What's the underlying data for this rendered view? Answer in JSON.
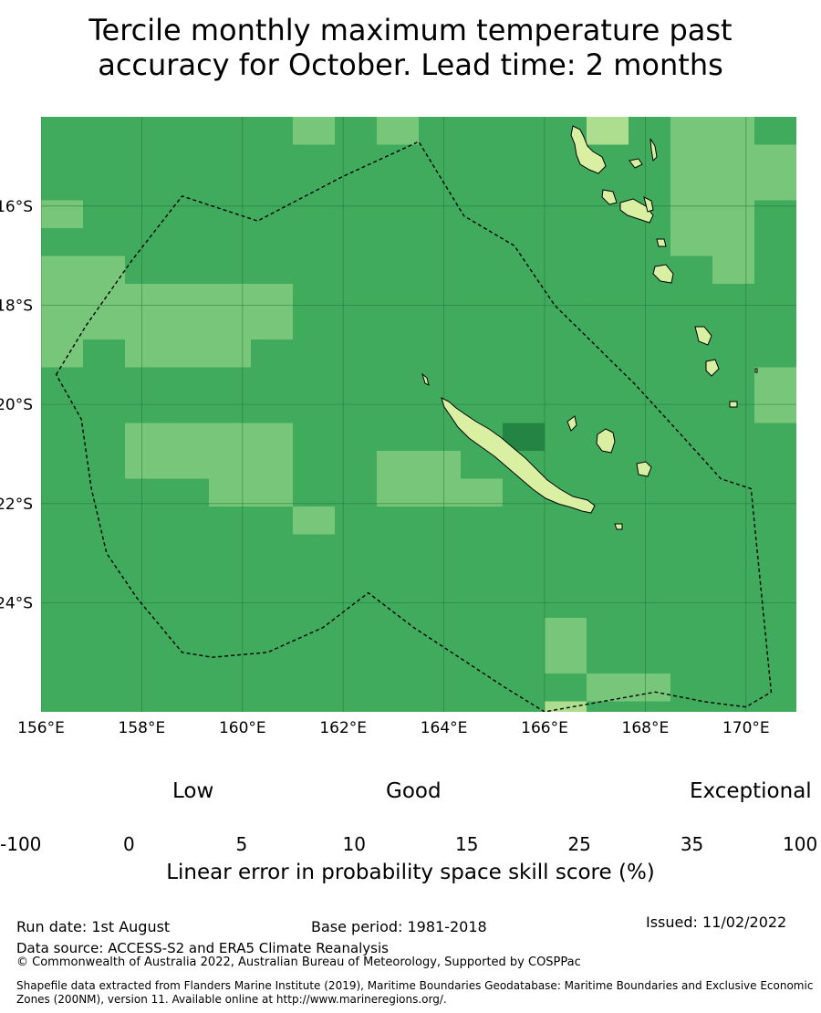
{
  "title": {
    "line1": "Tercile monthly maximum temperature past",
    "line2": "accuracy for October. Lead time: 2 months"
  },
  "map": {
    "lon_range": [
      156,
      171
    ],
    "lat_range": [
      -14.2,
      -26.2
    ],
    "lon_ticks": [
      "156°E",
      "158°E",
      "160°E",
      "162°E",
      "164°E",
      "166°E",
      "168°E",
      "170°E"
    ],
    "lat_ticks": [
      "16°S",
      "18°S",
      "20°S",
      "22°S",
      "24°S"
    ],
    "cell_deg": 0.8333,
    "cell_classes_legend": {
      "0": "-100 to 0",
      "1": "0 to 5",
      "2": "5 to 10",
      "3": "10 to 15",
      "4": "15 to 25",
      "5": "25 to 35",
      "6": "35 to 100"
    },
    "grid_rows": [
      "555555454555535445555",
      "555555555555555444555",
      "555555555555555444556",
      "455555555555555445555",
      "555555555555555445555",
      "445555555555555545555",
      "444444555555555555555",
      "444444555555555555555",
      "454445555555555555555",
      "555555555555555554555",
      "555555555555555554455",
      "554444555556555555555",
      "554444554455555555555",
      "555544554445555555555",
      "555555455555555555555",
      "555555555555555555555",
      "555555555555555555555",
      "555555555555555555555",
      "555555555555455555555",
      "555555555555455555555",
      "555555555555544555555",
      "555555555555355555555",
      "555555555555555555555",
      "555555555555555555555",
      "555555555555555555555",
      "555555555555555555555",
      "555555555555555555555",
      "555555555555555555555",
      "555555555555555555555",
      "555555555555555555555",
      "555555555555555555555"
    ],
    "eez_boundary": [
      [
        156.3,
        -19.4
      ],
      [
        156.9,
        -18.4
      ],
      [
        157.8,
        -17.1
      ],
      [
        158.8,
        -15.8
      ],
      [
        160.3,
        -16.3
      ],
      [
        162.0,
        -15.4
      ],
      [
        163.5,
        -14.7
      ],
      [
        164.4,
        -16.2
      ],
      [
        165.4,
        -16.8
      ],
      [
        166.2,
        -18.0
      ],
      [
        167.0,
        -18.8
      ],
      [
        167.8,
        -19.6
      ],
      [
        168.7,
        -20.6
      ],
      [
        169.5,
        -21.5
      ],
      [
        170.1,
        -21.7
      ],
      [
        170.5,
        -25.8
      ],
      [
        170.0,
        -26.1
      ],
      [
        169.2,
        -26.0
      ],
      [
        168.2,
        -25.8
      ],
      [
        166.0,
        -26.2
      ],
      [
        165.2,
        -25.7
      ],
      [
        164.3,
        -25.1
      ],
      [
        163.4,
        -24.5
      ],
      [
        162.5,
        -23.8
      ],
      [
        161.6,
        -24.5
      ],
      [
        160.5,
        -25.0
      ],
      [
        159.4,
        -25.1
      ],
      [
        158.8,
        -25.0
      ],
      [
        157.9,
        -23.9
      ],
      [
        157.3,
        -23.0
      ],
      [
        157.0,
        -21.7
      ],
      [
        156.8,
        -20.3
      ]
    ]
  },
  "colorbar": {
    "categories": [
      "Low",
      "Good",
      "Exceptional"
    ],
    "ticks": [
      "-100",
      "0",
      "5",
      "10",
      "15",
      "25",
      "35",
      "100"
    ],
    "colors": [
      "#ffffff",
      "#ffffcc",
      "#d9f0a3",
      "#addd8e",
      "#78c679",
      "#41ab5d",
      "#238443"
    ],
    "label": "Linear error in probability space skill score (%)"
  },
  "footer": {
    "run_date": "Run date: 1st August",
    "base_period": "Base period: 1981-2018",
    "issued": "Issued: 11/02/2022",
    "data_source": "Data source: ACCESS-S2 and ERA5 Climate Reanalysis",
    "copyright": "© Commonwealth of Australia 2022, Australian Bureau of Meteorology, Supported by COSPPac",
    "shapefile": "Shapefile data extracted from Flanders Marine Institute (2019), Maritime Boundaries Geodatabase: Maritime Boundaries and Exclusive Economic Zones (200NM), version 11. Available online at http://www.marineregions.org/."
  }
}
